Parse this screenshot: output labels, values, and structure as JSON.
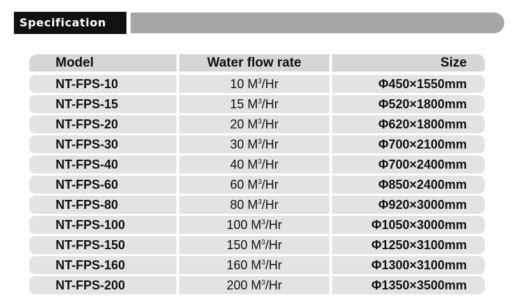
{
  "section": {
    "title": "Specification"
  },
  "table": {
    "headers": {
      "model": "Model",
      "flow": "Water flow rate",
      "size": "Size"
    },
    "flow_unit": {
      "pre": "M",
      "sup": "3",
      "post": "/Hr"
    },
    "rows": [
      {
        "model": "NT-FPS-10",
        "flow": "10",
        "size": "Φ450×1550mm"
      },
      {
        "model": "NT-FPS-15",
        "flow": "15",
        "size": "Φ520×1800mm"
      },
      {
        "model": "NT-FPS-20",
        "flow": "20",
        "size": "Φ620×1800mm"
      },
      {
        "model": "NT-FPS-30",
        "flow": "30",
        "size": "Φ700×2100mm"
      },
      {
        "model": "NT-FPS-40",
        "flow": "40",
        "size": "Φ700×2400mm"
      },
      {
        "model": "NT-FPS-60",
        "flow": "60",
        "size": "Φ850×2400mm"
      },
      {
        "model": "NT-FPS-80",
        "flow": "80",
        "size": "Φ920×3000mm"
      },
      {
        "model": "NT-FPS-100",
        "flow": "100",
        "size": "Φ1050×3000mm"
      },
      {
        "model": "NT-FPS-150",
        "flow": "150",
        "size": "Φ1250×3100mm"
      },
      {
        "model": "NT-FPS-160",
        "flow": "160",
        "size": "Φ1300×3100mm"
      },
      {
        "model": "NT-FPS-200",
        "flow": "200",
        "size": "Φ1350×3500mm"
      }
    ]
  }
}
